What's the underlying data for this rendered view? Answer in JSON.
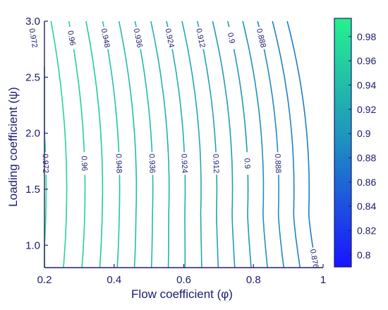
{
  "chart_data": {
    "type": "contour",
    "xlabel": "Flow coefficient (φ)",
    "ylabel": "Loading coefficient (ψ)",
    "xlim": [
      0.2,
      1.0
    ],
    "ylim": [
      0.8,
      3.0
    ],
    "x_ticks": [
      {
        "value": 0.2,
        "label": "0.2"
      },
      {
        "value": 0.4,
        "label": "0.4"
      },
      {
        "value": 0.6,
        "label": "0.6"
      },
      {
        "value": 0.8,
        "label": "0.8"
      },
      {
        "value": 1.0,
        "label": "1"
      }
    ],
    "y_ticks": [
      {
        "value": 1.0,
        "label": "1.0"
      },
      {
        "value": 1.5,
        "label": "1.5"
      },
      {
        "value": 2.0,
        "label": "2.0"
      },
      {
        "value": 2.5,
        "label": "2.5"
      },
      {
        "value": 3.0,
        "label": "3.0"
      }
    ],
    "colorbar": {
      "range": [
        0.79,
        0.995
      ],
      "ticks": [
        {
          "value": 0.8,
          "label": "0.8"
        },
        {
          "value": 0.82,
          "label": "0.82"
        },
        {
          "value": 0.84,
          "label": "0.84"
        },
        {
          "value": 0.86,
          "label": "0.86"
        },
        {
          "value": 0.88,
          "label": "0.88"
        },
        {
          "value": 0.9,
          "label": "0.9"
        },
        {
          "value": 0.92,
          "label": "0.92"
        },
        {
          "value": 0.94,
          "label": "0.94"
        },
        {
          "value": 0.96,
          "label": "0.96"
        },
        {
          "value": 0.98,
          "label": "0.98"
        }
      ],
      "colors": {
        "low": "#1a14ff",
        "mid": "#1f8fc0",
        "high": "#25f28c"
      }
    },
    "contour_levels": [
      0.876,
      0.882,
      0.888,
      0.894,
      0.9,
      0.906,
      0.912,
      0.918,
      0.924,
      0.93,
      0.936,
      0.942,
      0.948,
      0.954,
      0.96,
      0.966,
      0.972,
      0.978
    ],
    "contour_labels": [
      {
        "level": 0.972,
        "text": "0.972",
        "y": 2.85
      },
      {
        "level": 0.96,
        "text": "0.96",
        "y": 2.85
      },
      {
        "level": 0.948,
        "text": "0.948",
        "y": 2.85
      },
      {
        "level": 0.936,
        "text": "0.936",
        "y": 2.85
      },
      {
        "level": 0.924,
        "text": "0.924",
        "y": 2.85
      },
      {
        "level": 0.912,
        "text": "0.912",
        "y": 2.85
      },
      {
        "level": 0.9,
        "text": "0.9",
        "y": 2.85
      },
      {
        "level": 0.888,
        "text": "0.888",
        "y": 2.85
      },
      {
        "level": 0.972,
        "text": "0.972",
        "y": 1.73
      },
      {
        "level": 0.96,
        "text": "0.96",
        "y": 1.73
      },
      {
        "level": 0.948,
        "text": "0.948",
        "y": 1.73
      },
      {
        "level": 0.936,
        "text": "0.936",
        "y": 1.73
      },
      {
        "level": 0.924,
        "text": "0.924",
        "y": 1.73
      },
      {
        "level": 0.912,
        "text": "0.912",
        "y": 1.73
      },
      {
        "level": 0.9,
        "text": "0.9",
        "y": 1.73
      },
      {
        "level": 0.888,
        "text": "0.888",
        "y": 1.73
      },
      {
        "level": 0.876,
        "text": "0.876",
        "y": 0.88
      }
    ]
  }
}
